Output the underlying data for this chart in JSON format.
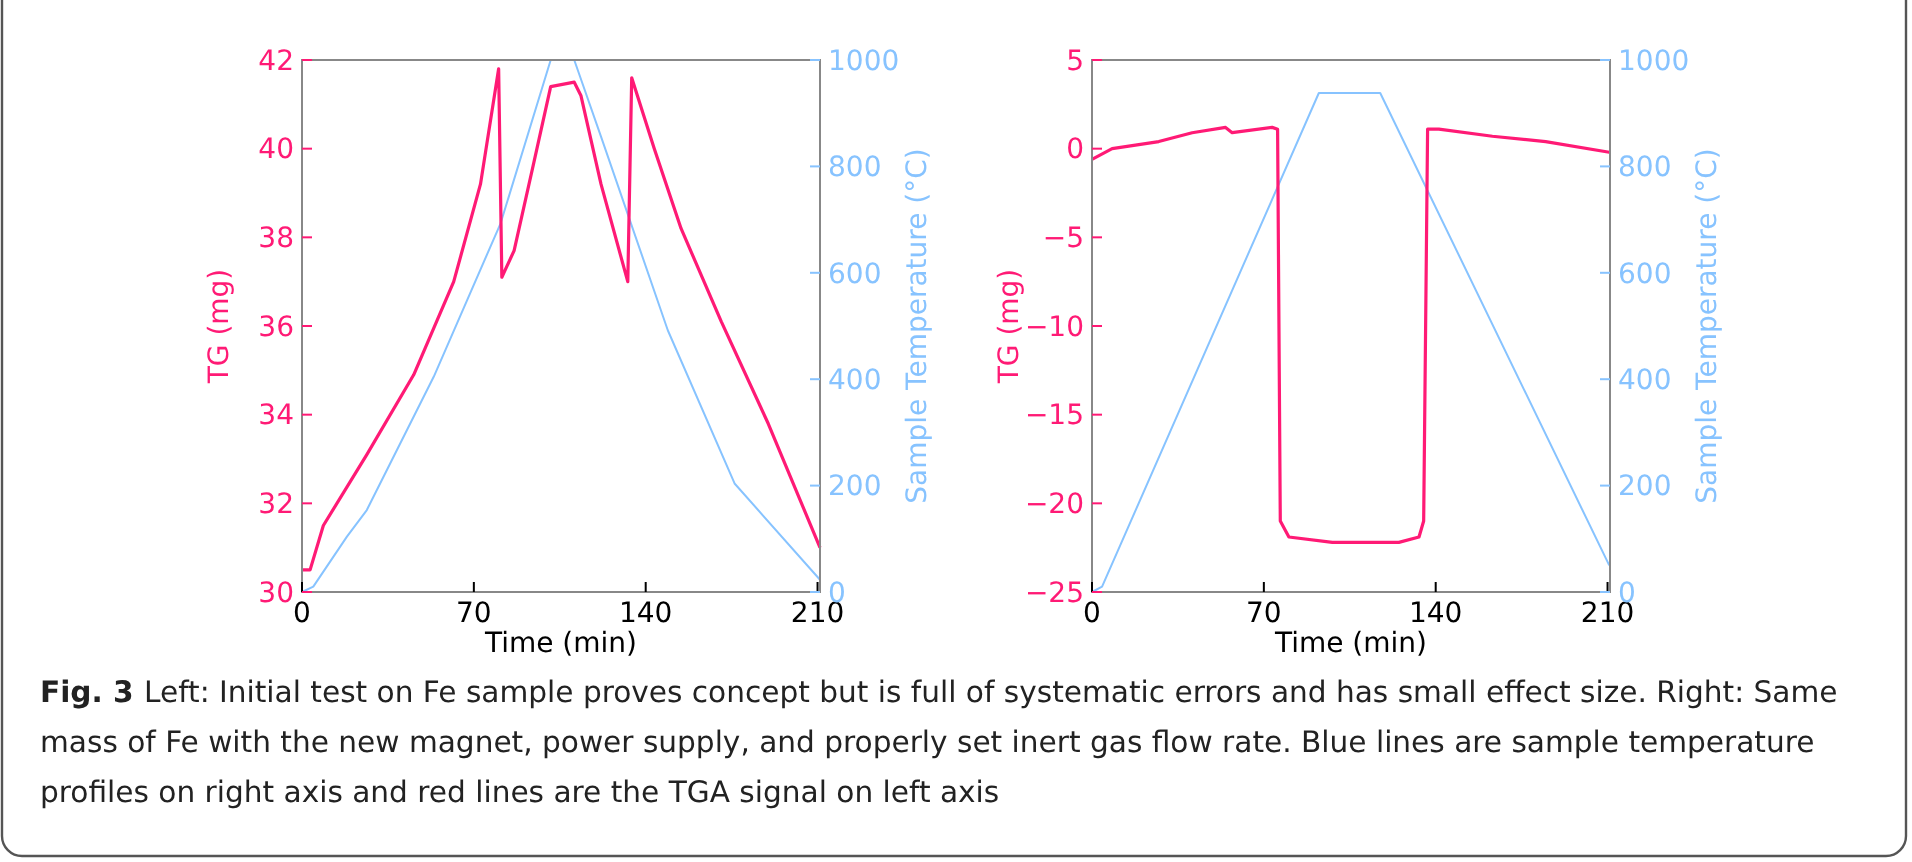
{
  "chart_data": [
    {
      "type": "line",
      "xlabel": "Time (min)",
      "ylabel": "TG (mg)",
      "y2label": "Sample Temperature (°C)",
      "xlim": [
        0,
        211
      ],
      "xticks": [
        0,
        70,
        140,
        210
      ],
      "ylim": [
        30,
        42
      ],
      "yticks": [
        30,
        32,
        34,
        36,
        38,
        40,
        42
      ],
      "y2lim": [
        0,
        1000
      ],
      "y2ticks": [
        0,
        200,
        400,
        600,
        800,
        1000
      ],
      "grid": false,
      "series": [
        {
          "color": "#87c3ff",
          "axis": "y2",
          "x": [
            0,
            4.6,
            18.3,
            26.4,
            53.7,
            80.9,
            101.3,
            110.9,
            121.8,
            149,
            176.2,
            211
          ],
          "values": [
            0,
            10,
            104,
            154,
            405,
            693,
            1000,
            1000,
            856,
            492,
            204,
            23
          ]
        },
        {
          "color": "#ff1a75",
          "x": [
            0,
            3.3,
            8.7,
            26.4,
            45.5,
            61.8,
            72.7,
            80.1,
            81.4,
            86.4,
            94.5,
            101.3,
            110.9,
            113.6,
            121.8,
            132.7,
            134.3,
            143.5,
            154.4,
            170.8,
            189.9,
            211
          ],
          "values": [
            30.5,
            30.5,
            31.5,
            33.1,
            34.9,
            37,
            39.2,
            41.8,
            37.1,
            37.7,
            39.7,
            41.4,
            41.5,
            41.2,
            39.2,
            37,
            41.6,
            40,
            38.2,
            36.1,
            33.8,
            31
          ]
        }
      ],
      "annotations": [
        "Fig. 3",
        "Left: Initial test on Fe sample proves concept but is full of systematic errors and has small effect size. Right: Same mass of Fe with the new magnet, power supply, and properly set inert gas flow rate. Blue lines are sample temperature profiles on right axis and red lines are the TGA signal on left axis"
      ]
    },
    {
      "type": "line",
      "xlabel": "Time (min)",
      "ylabel": "TG (mg)",
      "y2label": "Sample Temperature (°C)",
      "xlim": [
        0,
        211
      ],
      "xticks": [
        0,
        70,
        140,
        210
      ],
      "ylim": [
        -25,
        5
      ],
      "yticks": [
        -25,
        -20,
        -15,
        -10,
        -5,
        0,
        5
      ],
      "y2lim": [
        0,
        1000
      ],
      "y2ticks": [
        0,
        200,
        400,
        600,
        800,
        1000
      ],
      "grid": false,
      "series": [
        {
          "color": "#87c3ff",
          "axis": "y2",
          "x": [
            0,
            4.1,
            92.4,
            117.4,
            210.7
          ],
          "values": [
            0,
            10,
            938,
            938,
            50
          ]
        },
        {
          "color": "#ff1a75",
          "x": [
            0,
            8.2,
            27.2,
            40.8,
            54.4,
            57.1,
            73.4,
            75.6,
            76.7,
            80.2,
            97.9,
            125,
            133.2,
            135.1,
            136.7,
            141.3,
            163.1,
            184.8,
            210.7
          ],
          "values": [
            -0.6,
            0,
            0.4,
            0.9,
            1.2,
            0.9,
            1.2,
            1.1,
            -21,
            -21.9,
            -22.2,
            -22.2,
            -21.9,
            -21,
            1.1,
            1.1,
            0.7,
            0.4,
            -0.2
          ]
        }
      ]
    }
  ]
}
